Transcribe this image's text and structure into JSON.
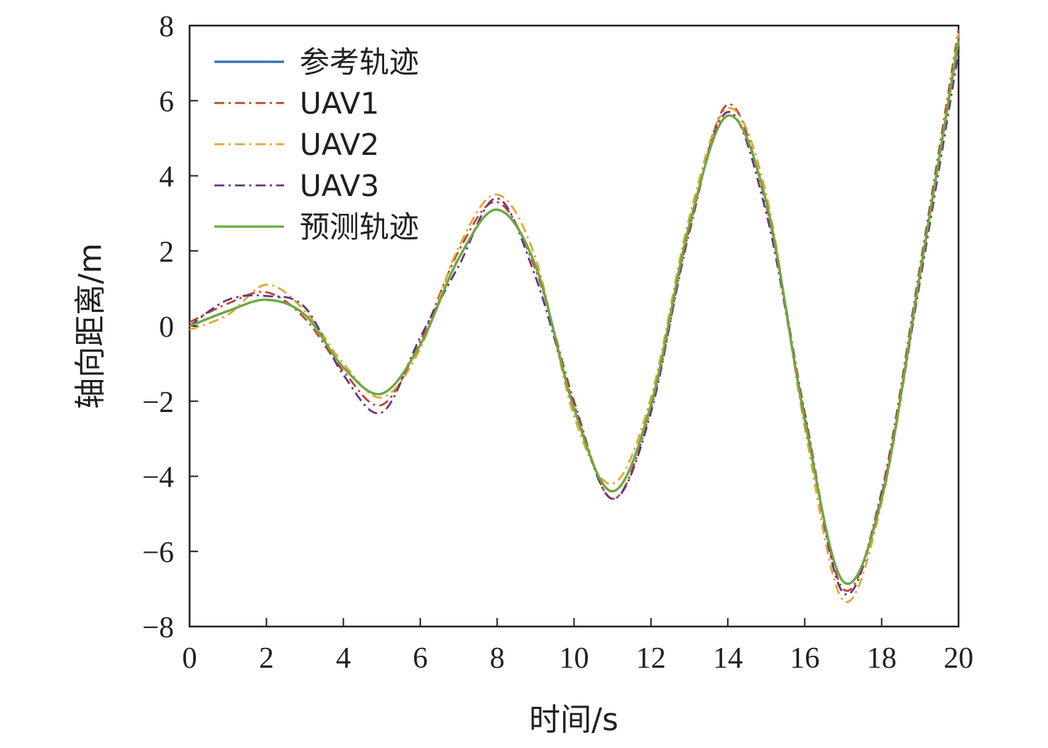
{
  "chart_data": {
    "type": "line",
    "title": "",
    "xlabel": "时间/s",
    "ylabel": "轴向距离/m",
    "xlim": [
      0,
      20
    ],
    "ylim": [
      -8,
      8
    ],
    "xticks": [
      "0",
      "2",
      "4",
      "6",
      "8",
      "10",
      "12",
      "14",
      "16",
      "18",
      "20"
    ],
    "yticks": [
      "8",
      "6",
      "4",
      "2",
      "0",
      "−2",
      "−4",
      "−6",
      "−8"
    ],
    "grid": false,
    "legend_position": "top-left",
    "series": [
      {
        "name": "参考轨迹",
        "style": "solid",
        "color": "#2e6fb0",
        "x": [
          0,
          1,
          2,
          3,
          4,
          5,
          6,
          7,
          8,
          9,
          10,
          11,
          12,
          13,
          14,
          15,
          16,
          17,
          18,
          19,
          20
        ],
        "y": [
          0,
          0.4,
          0.7,
          0.3,
          -1.1,
          -1.8,
          -0.5,
          1.8,
          3.1,
          1.6,
          -2.2,
          -4.4,
          -2.1,
          2.7,
          5.6,
          3.3,
          -2.5,
          -6.8,
          -4.6,
          1.4,
          7.6
        ]
      },
      {
        "name": "UAV1",
        "style": "dashdot",
        "color": "#c0432c",
        "x": [
          0,
          1,
          2,
          3,
          4,
          5,
          6,
          7,
          8,
          9,
          10,
          11,
          12,
          13,
          14,
          15,
          16,
          17,
          18,
          19,
          20
        ],
        "y": [
          0.1,
          0.6,
          0.9,
          0.2,
          -1.2,
          -2.1,
          -0.4,
          2.0,
          3.3,
          1.5,
          -2.0,
          -4.6,
          -2.2,
          2.5,
          5.9,
          3.2,
          -2.3,
          -7.0,
          -4.4,
          1.6,
          7.9
        ]
      },
      {
        "name": "UAV2",
        "style": "dashdot",
        "color": "#e5a532",
        "x": [
          0,
          1,
          2,
          3,
          4,
          5,
          6,
          7,
          8,
          9,
          10,
          11,
          12,
          13,
          14,
          15,
          16,
          17,
          18,
          19,
          20
        ],
        "y": [
          -0.1,
          0.3,
          1.1,
          0.4,
          -1.0,
          -1.9,
          -0.6,
          2.1,
          3.5,
          1.8,
          -2.4,
          -4.2,
          -1.9,
          2.9,
          5.8,
          3.5,
          -2.7,
          -7.3,
          -4.7,
          1.3,
          7.8
        ]
      },
      {
        "name": "UAV3",
        "style": "dashdot",
        "color": "#6b3287",
        "x": [
          0,
          1,
          2,
          3,
          4,
          5,
          6,
          7,
          8,
          9,
          10,
          11,
          12,
          13,
          14,
          15,
          16,
          17,
          18,
          19,
          20
        ],
        "y": [
          0.0,
          0.7,
          0.8,
          0.5,
          -1.3,
          -2.3,
          -0.3,
          1.6,
          3.4,
          1.3,
          -2.1,
          -4.6,
          -2.3,
          2.6,
          5.7,
          3.0,
          -2.4,
          -7.1,
          -4.5,
          1.2,
          7.3
        ]
      },
      {
        "name": "预测轨迹",
        "style": "solid",
        "color": "#6aab3c",
        "x": [
          0,
          1,
          2,
          3,
          4,
          5,
          6,
          7,
          8,
          9,
          10,
          11,
          12,
          13,
          14,
          15,
          16,
          17,
          18,
          19,
          20
        ],
        "y": [
          0,
          0.4,
          0.7,
          0.3,
          -1.1,
          -1.8,
          -0.5,
          1.8,
          3.1,
          1.6,
          -2.2,
          -4.4,
          -2.1,
          2.7,
          5.6,
          3.3,
          -2.5,
          -6.8,
          -4.6,
          1.4,
          7.6
        ]
      }
    ]
  }
}
